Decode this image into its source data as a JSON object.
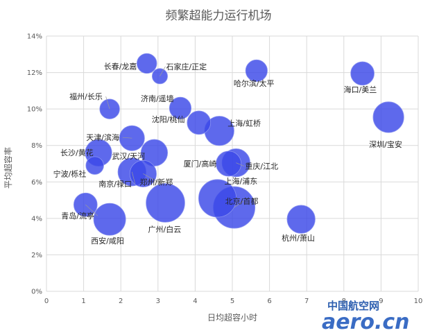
{
  "chart_data": {
    "type": "scatter",
    "title": "频繁超能力运行机场",
    "xlabel": "日均超容小时",
    "ylabel": "平均超容率",
    "xlim": [
      0,
      10
    ],
    "ylim": [
      0,
      14
    ],
    "x_ticks": [
      "0",
      "1",
      "2",
      "3",
      "4",
      "5",
      "6",
      "7",
      "8",
      "9",
      "10"
    ],
    "y_ticks": [
      "0%",
      "2%",
      "4%",
      "6%",
      "8%",
      "10%",
      "12%",
      "14%"
    ],
    "grid": true,
    "bubble_color": "#3b48e8",
    "points": [
      {
        "name": "长春/龙嘉",
        "x": 2.7,
        "y": 12.5,
        "size": 5
      },
      {
        "name": "石家庄/正定",
        "x": 3.05,
        "y": 11.8,
        "size": 3
      },
      {
        "name": "哈尔滨/太平",
        "x": 5.65,
        "y": 12.1,
        "size": 6
      },
      {
        "name": "海口/美兰",
        "x": 8.5,
        "y": 11.95,
        "size": 7
      },
      {
        "name": "福州/长乐",
        "x": 1.7,
        "y": 10.0,
        "size": 5
      },
      {
        "name": "济南/遥墙",
        "x": 3.6,
        "y": 10.05,
        "size": 6
      },
      {
        "name": "深圳/宝安",
        "x": 9.2,
        "y": 9.55,
        "size": 12
      },
      {
        "name": "天津/滨海",
        "x": 2.3,
        "y": 8.4,
        "size": 8
      },
      {
        "name": "沈阳/桃仙",
        "x": 4.1,
        "y": 9.25,
        "size": 7
      },
      {
        "name": "上海/虹桥",
        "x": 4.65,
        "y": 8.8,
        "size": 11
      },
      {
        "name": "长沙/黄花",
        "x": 1.4,
        "y": 7.6,
        "size": 9
      },
      {
        "name": "武汉/天河",
        "x": 2.9,
        "y": 7.6,
        "size": 9
      },
      {
        "name": "宁波/栎社",
        "x": 1.3,
        "y": 6.9,
        "size": 4
      },
      {
        "name": "南京/禄口",
        "x": 2.3,
        "y": 6.55,
        "size": 10
      },
      {
        "name": "郑州/新郑",
        "x": 2.6,
        "y": 6.45,
        "size": 9
      },
      {
        "name": "厦门/高崎",
        "x": 4.9,
        "y": 7.0,
        "size": 8
      },
      {
        "name": "重庆/江北",
        "x": 5.1,
        "y": 7.05,
        "size": 10
      },
      {
        "name": "上海/浦东",
        "x": 4.6,
        "y": 5.1,
        "size": 18
      },
      {
        "name": "北京/首都",
        "x": 5.05,
        "y": 4.6,
        "size": 22
      },
      {
        "name": "青岛/流亭",
        "x": 1.05,
        "y": 4.75,
        "size": 7
      },
      {
        "name": "西安/咸阳",
        "x": 1.7,
        "y": 3.95,
        "size": 13
      },
      {
        "name": "广州/白云",
        "x": 3.2,
        "y": 4.85,
        "size": 19
      },
      {
        "name": "杭州/萧山",
        "x": 6.85,
        "y": 3.95,
        "size": 10
      }
    ]
  },
  "watermark": {
    "cn": "中国航空网",
    "en": "aero.cn"
  }
}
